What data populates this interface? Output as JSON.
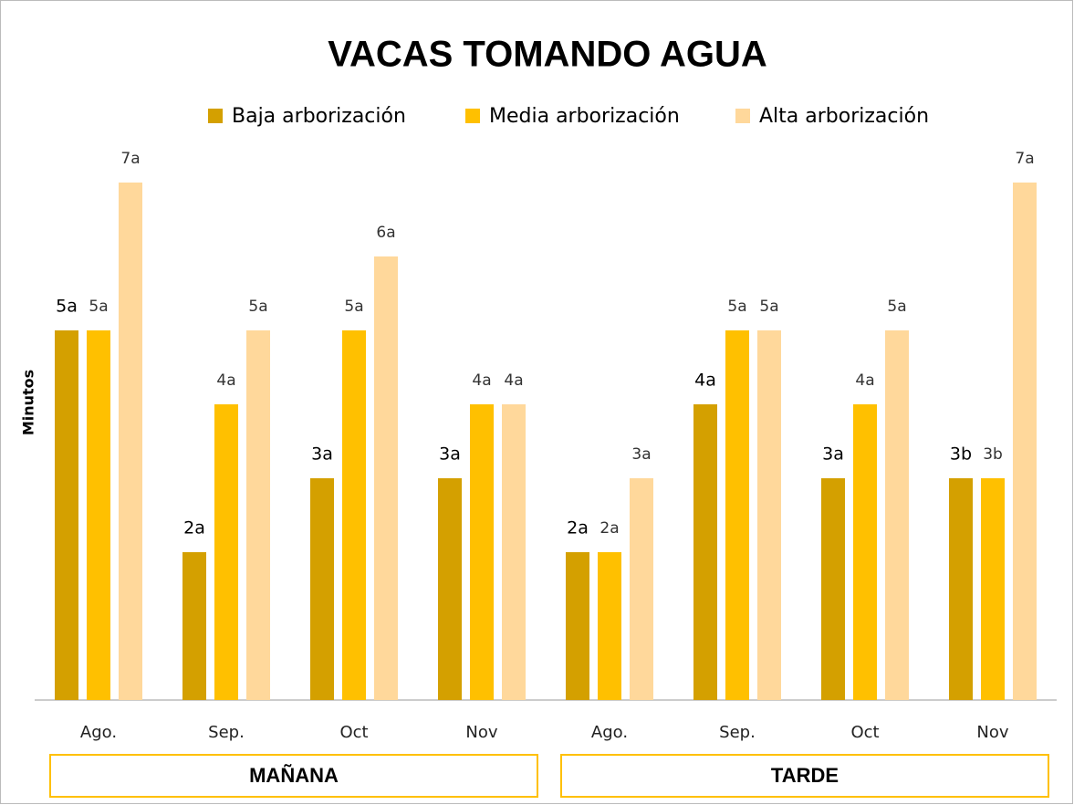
{
  "chart_data": {
    "type": "bar",
    "title": "VACAS TOMANDO AGUA",
    "y_label": "Minutos",
    "categories": [
      "Ago.",
      "Sep.",
      "Oct",
      "Nov",
      "Ago.",
      "Sep.",
      "Oct",
      "Nov"
    ],
    "groups": [
      "MAÑANA",
      "TARDE"
    ],
    "series": [
      {
        "name": "Baja arborización",
        "color": "#d4a000",
        "values": [
          5,
          2,
          3,
          3,
          2,
          4,
          3,
          3
        ],
        "value_labels": [
          "5a",
          "2a",
          "3a",
          "3a",
          "2a",
          "4a",
          "3a",
          "3b"
        ]
      },
      {
        "name": "Media arborización",
        "color": "#ffc000",
        "values": [
          5,
          4,
          5,
          4,
          2,
          5,
          4,
          3
        ],
        "value_labels": [
          "5a",
          "4a",
          "5a",
          "4a",
          "2a",
          "5a",
          "4a",
          "3b"
        ]
      },
      {
        "name": "Alta arborización",
        "color": "#ffd89b",
        "values": [
          7,
          5,
          6,
          4,
          3,
          5,
          5,
          7
        ],
        "value_labels": [
          "7a",
          "5a",
          "6a",
          "4a",
          "3a",
          "5a",
          "5a",
          "7a"
        ]
      }
    ],
    "ylim": [
      0,
      8
    ],
    "legend": "top"
  }
}
